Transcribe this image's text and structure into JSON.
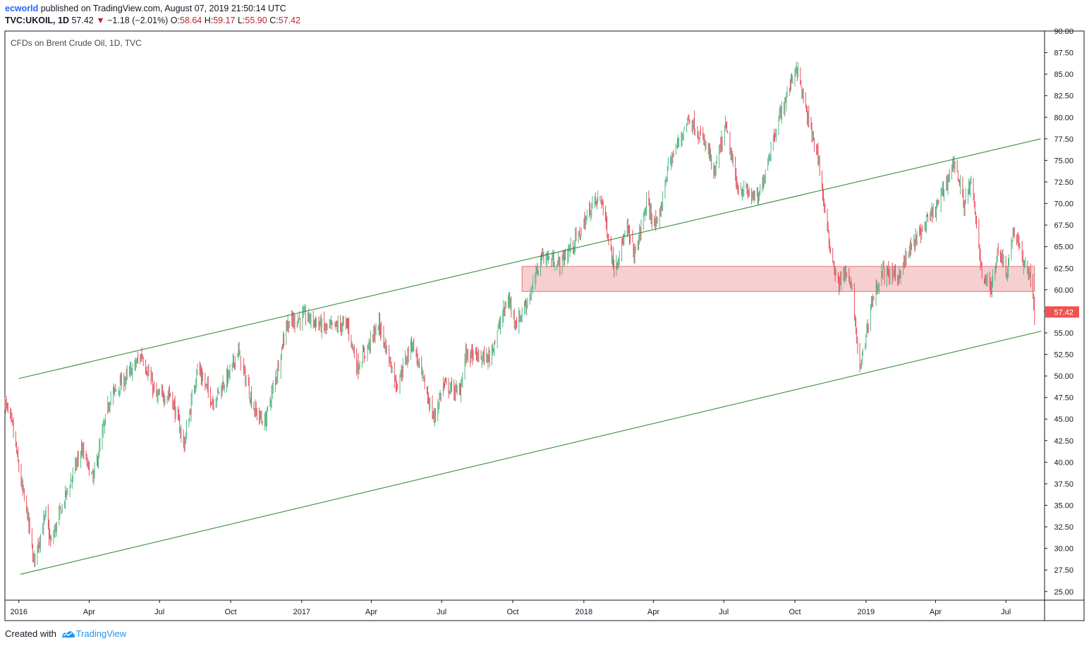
{
  "header": {
    "author": "ecworld",
    "published_text": "published on TradingView.com, August 07, 2019 21:50:14 UTC",
    "symbol": "TVC:UKOIL, 1D",
    "last": "57.42",
    "change_arrow": "▼",
    "change": "−1.18 (−2.01%)",
    "o_label": "O:",
    "o_value": "58.64",
    "h_label": "H:",
    "h_value": "59.17",
    "l_label": "L:",
    "l_value": "55.90",
    "c_label": "C:",
    "c_value": "57.42"
  },
  "footer": {
    "created_with": "Created with",
    "brand": "TradingView"
  },
  "colors": {
    "up": "#53b987",
    "down": "#eb4d5c",
    "channel": "#388e3c",
    "zone_fill": "#f4c7c9",
    "zone_stroke": "#e57373",
    "price_tag": "#ef5350"
  },
  "chart_data": {
    "type": "candlestick",
    "title": "CFDs on Brent Crude Oil, 1D, TVC",
    "ylim": [
      24,
      90
    ],
    "y_ticks": [
      "90.00",
      "87.50",
      "85.00",
      "82.50",
      "80.00",
      "77.50",
      "75.00",
      "72.50",
      "70.00",
      "67.50",
      "65.00",
      "62.50",
      "60.00",
      "57.50",
      "55.00",
      "52.50",
      "50.00",
      "47.50",
      "45.00",
      "42.50",
      "40.00",
      "37.50",
      "35.00",
      "32.50",
      "30.00",
      "27.50",
      "25.00"
    ],
    "x_ticks": [
      "2016",
      "Apr",
      "Jul",
      "Oct",
      "2017",
      "Apr",
      "Jul",
      "Oct",
      "2018",
      "Apr",
      "Jul",
      "Oct",
      "2019",
      "Apr",
      "Jul"
    ],
    "x_tick_dates": [
      "2016-01",
      "2016-04",
      "2016-07",
      "2016-10",
      "2017-01",
      "2017-04",
      "2017-07",
      "2017-10",
      "2018-01",
      "2018-04",
      "2018-07",
      "2018-10",
      "2019-01",
      "2019-04",
      "2019-07"
    ],
    "x_range": [
      "2015-12-14",
      "2019-08-20"
    ],
    "last_price": "57.42",
    "price_path": [
      [
        "2015-12-14",
        47.0
      ],
      [
        "2015-12-24",
        44.0
      ],
      [
        "2016-01-05",
        37.0
      ],
      [
        "2016-01-12",
        34.0
      ],
      [
        "2016-01-20",
        28.5
      ],
      [
        "2016-02-05",
        34.0
      ],
      [
        "2016-02-11",
        30.5
      ],
      [
        "2016-03-01",
        36.0
      ],
      [
        "2016-03-22",
        41.5
      ],
      [
        "2016-04-06",
        38.0
      ],
      [
        "2016-04-28",
        47.5
      ],
      [
        "2016-05-25",
        50.5
      ],
      [
        "2016-06-08",
        52.5
      ],
      [
        "2016-06-27",
        47.5
      ],
      [
        "2016-07-15",
        48.0
      ],
      [
        "2016-08-02",
        42.0
      ],
      [
        "2016-08-19",
        51.0
      ],
      [
        "2016-09-08",
        47.0
      ],
      [
        "2016-10-01",
        50.5
      ],
      [
        "2016-10-10",
        53.0
      ],
      [
        "2016-11-01",
        46.0
      ],
      [
        "2016-11-14",
        44.5
      ],
      [
        "2016-11-30",
        50.5
      ],
      [
        "2016-12-12",
        56.0
      ],
      [
        "2017-01-06",
        57.0
      ],
      [
        "2017-02-01",
        55.5
      ],
      [
        "2017-03-01",
        56.0
      ],
      [
        "2017-03-14",
        51.0
      ],
      [
        "2017-04-11",
        56.0
      ],
      [
        "2017-05-04",
        49.0
      ],
      [
        "2017-05-24",
        54.0
      ],
      [
        "2017-06-21",
        45.0
      ],
      [
        "2017-07-03",
        49.0
      ],
      [
        "2017-07-24",
        48.0
      ],
      [
        "2017-08-01",
        52.5
      ],
      [
        "2017-08-31",
        52.0
      ],
      [
        "2017-09-25",
        59.0
      ],
      [
        "2017-10-06",
        56.0
      ],
      [
        "2017-10-26",
        60.0
      ],
      [
        "2017-11-07",
        64.0
      ],
      [
        "2017-12-01",
        63.0
      ],
      [
        "2017-12-27",
        66.5
      ],
      [
        "2018-01-12",
        70.0
      ],
      [
        "2018-01-24",
        70.5
      ],
      [
        "2018-02-09",
        62.5
      ],
      [
        "2018-02-26",
        67.0
      ],
      [
        "2018-03-08",
        64.0
      ],
      [
        "2018-03-23",
        70.0
      ],
      [
        "2018-04-06",
        67.0
      ],
      [
        "2018-04-19",
        74.0
      ],
      [
        "2018-05-17",
        80.0
      ],
      [
        "2018-06-12",
        76.0
      ],
      [
        "2018-06-18",
        73.0
      ],
      [
        "2018-07-03",
        79.0
      ],
      [
        "2018-07-18",
        72.0
      ],
      [
        "2018-08-15",
        70.5
      ],
      [
        "2018-09-04",
        78.0
      ],
      [
        "2018-10-03",
        86.0
      ],
      [
        "2018-10-17",
        80.0
      ],
      [
        "2018-10-31",
        75.5
      ],
      [
        "2018-11-13",
        66.0
      ],
      [
        "2018-11-26",
        60.5
      ],
      [
        "2018-12-04",
        62.0
      ],
      [
        "2018-12-14",
        60.0
      ],
      [
        "2018-12-24",
        50.5
      ],
      [
        "2019-01-08",
        58.5
      ],
      [
        "2019-01-22",
        62.0
      ],
      [
        "2019-02-11",
        61.5
      ],
      [
        "2019-03-01",
        65.0
      ],
      [
        "2019-04-05",
        70.0
      ],
      [
        "2019-04-25",
        75.0
      ],
      [
        "2019-05-08",
        70.0
      ],
      [
        "2019-05-17",
        72.5
      ],
      [
        "2019-05-31",
        62.0
      ],
      [
        "2019-06-12",
        60.0
      ],
      [
        "2019-06-21",
        65.0
      ],
      [
        "2019-07-02",
        62.0
      ],
      [
        "2019-07-11",
        67.0
      ],
      [
        "2019-07-24",
        63.0
      ],
      [
        "2019-08-01",
        62.0
      ],
      [
        "2019-08-07",
        57.42
      ]
    ],
    "lines": [
      {
        "name": "upper-channel",
        "from": [
          "2016-01-01",
          49.7
        ],
        "to": [
          "2019-08-15",
          77.5
        ]
      },
      {
        "name": "lower-channel",
        "from": [
          "2016-01-03",
          27.0
        ],
        "to": [
          "2019-08-16",
          55.2
        ]
      }
    ],
    "zone": {
      "from": "2017-10-13",
      "to": "2019-08-07",
      "y_low": 59.8,
      "y_high": 62.7
    }
  }
}
